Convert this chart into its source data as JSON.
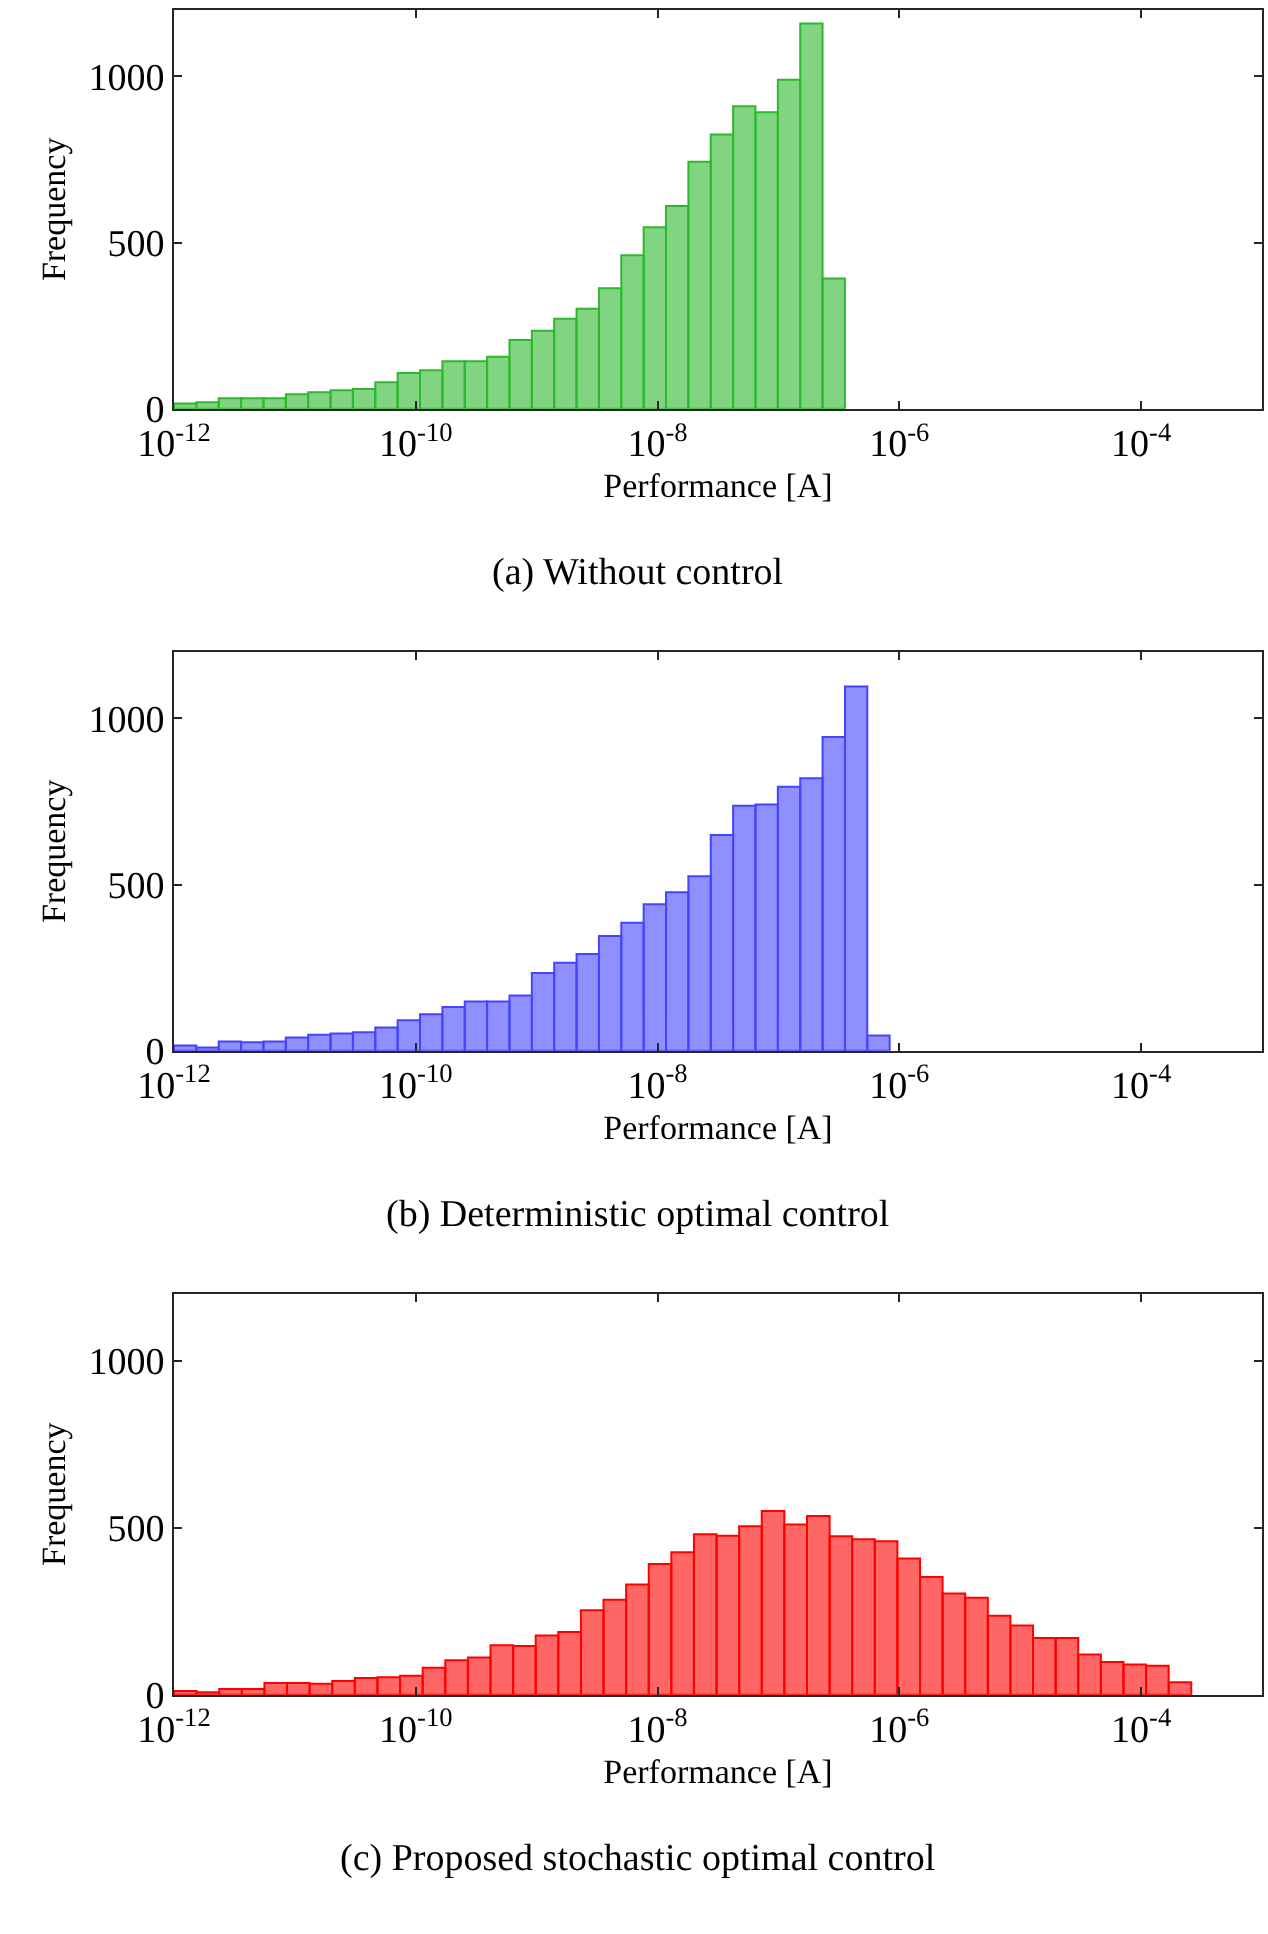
{
  "chart_data": [
    {
      "type": "histogram",
      "title": "(a) Without control",
      "xlabel": "Performance [A]",
      "ylabel": "Frequency",
      "log": "x",
      "color": "#2db82d",
      "bins": [
        1e-12,
        1.531e-12,
        2.344e-12,
        3.589e-12,
        5.495e-12,
        8.414e-12,
        1.288e-11,
        1.972e-11,
        3.02e-11,
        4.624e-11,
        7.079e-11,
        1.084e-10,
        1.66e-10,
        2.541e-10,
        3.89e-10,
        5.957e-10,
        9.12e-10,
        1.396e-09,
        2.138e-09,
        3.273e-09,
        5.012e-09,
        7.674e-09,
        1.175e-08,
        1.799e-08,
        2.754e-08,
        4.217e-08,
        6.457e-08,
        9.886e-08,
        1.514e-07,
        2.317e-07,
        3.548e-07
      ],
      "values": [
        16,
        20,
        32,
        32,
        32,
        44,
        50,
        56,
        60,
        80,
        108,
        116,
        143,
        143,
        157,
        207,
        235,
        271,
        301,
        363,
        462,
        546,
        610,
        743,
        825,
        910,
        892,
        990,
        1159,
        392
      ],
      "xlim": [
        1e-12,
        0.001
      ],
      "ylim": [
        0,
        1200
      ],
      "xticks": [
        {
          "value": 1e-12,
          "label": "10$^{-12}$"
        },
        {
          "value": 1e-10,
          "label": "10$^{-10}$"
        },
        {
          "value": 1e-08,
          "label": "10$^{-8}$"
        },
        {
          "value": 1e-06,
          "label": "10$^{-6}$"
        },
        {
          "value": 0.0001,
          "label": "10$^{-4}$"
        }
      ],
      "yticks": [
        0,
        500,
        1000
      ]
    },
    {
      "type": "histogram",
      "title": "(b) Deterministic optimal control",
      "xlabel": "Performance [A]",
      "ylabel": "Frequency",
      "log": "x",
      "color": "#4444ff",
      "bins": [
        1e-12,
        1.531e-12,
        2.344e-12,
        3.589e-12,
        5.495e-12,
        8.414e-12,
        1.288e-11,
        1.972e-11,
        3.02e-11,
        4.624e-11,
        7.079e-11,
        1.084e-10,
        1.66e-10,
        2.541e-10,
        3.89e-10,
        5.957e-10,
        9.12e-10,
        1.396e-09,
        2.138e-09,
        3.273e-09,
        5.012e-09,
        7.674e-09,
        1.175e-08,
        1.799e-08,
        2.754e-08,
        4.217e-08,
        6.457e-08,
        9.886e-08,
        1.514e-07,
        2.317e-07,
        3.548e-07,
        5.433e-07,
        8.318e-07
      ],
      "values": [
        16,
        10,
        28,
        26,
        28,
        40,
        48,
        52,
        56,
        70,
        92,
        110,
        132,
        148,
        148,
        166,
        234,
        265,
        291,
        345,
        385,
        441,
        477,
        525,
        649,
        737,
        741,
        794,
        820,
        944,
        1096,
        46
      ],
      "xlim": [
        1e-12,
        0.001
      ],
      "ylim": [
        0,
        1200
      ],
      "xticks": [
        {
          "value": 1e-12,
          "label": "10$^{-12}$"
        },
        {
          "value": 1e-10,
          "label": "10$^{-10}$"
        },
        {
          "value": 1e-08,
          "label": "10$^{-8}$"
        },
        {
          "value": 1e-06,
          "label": "10$^{-6}$"
        },
        {
          "value": 0.0001,
          "label": "10$^{-4}$"
        }
      ],
      "yticks": [
        0,
        500,
        1000
      ]
    },
    {
      "type": "histogram",
      "title": "(c) Proposed stochastic optimal control",
      "xlabel": "Performance [A]",
      "ylabel": "Frequency",
      "log": "x",
      "color": "#ff0000",
      "bins": [
        1e-12,
        1.538e-12,
        2.366e-12,
        3.639e-12,
        5.598e-12,
        8.61e-12,
        1.324e-11,
        2.037e-11,
        3.133e-11,
        4.819e-11,
        7.413e-11,
        1.14e-10,
        1.754e-10,
        2.698e-10,
        4.15e-10,
        6.383e-10,
        9.817e-10,
        1.51e-09,
        2.323e-09,
        3.573e-09,
        5.495e-09,
        8.453e-09,
        1.3e-08,
        2e-08,
        3.076e-08,
        4.732e-08,
        7.278e-08,
        1.119e-07,
        1.722e-07,
        2.649e-07,
        4.074e-07,
        6.266e-07,
        9.638e-07,
        1.483e-06,
        2.28e-06,
        3.508e-06,
        5.395e-06,
        8.299e-06,
        1.276e-05,
        1.963e-05,
        3.02e-05,
        4.645e-05,
        7.145e-05,
        0.0001099,
        0.000169,
        0.00026
      ],
      "values": [
        11,
        7,
        17,
        17,
        35,
        35,
        33,
        41,
        50,
        52,
        57,
        81,
        103,
        111,
        148,
        146,
        177,
        188,
        253,
        284,
        330,
        391,
        426,
        480,
        476,
        504,
        550,
        509,
        535,
        474,
        465,
        459,
        408,
        352,
        303,
        290,
        236,
        207,
        170,
        170,
        120,
        98,
        90,
        87,
        37
      ],
      "xlim": [
        1e-12,
        0.001
      ],
      "ylim": [
        0,
        1200
      ],
      "xticks": [
        {
          "value": 1e-12,
          "label": "10$^{-12}$"
        },
        {
          "value": 1e-10,
          "label": "10$^{-10}$"
        },
        {
          "value": 1e-08,
          "label": "10$^{-8}$"
        },
        {
          "value": 1e-06,
          "label": "10$^{-6}$"
        },
        {
          "value": 0.0001,
          "label": "10$^{-4}$"
        }
      ],
      "yticks": [
        0,
        500,
        1000
      ]
    }
  ]
}
